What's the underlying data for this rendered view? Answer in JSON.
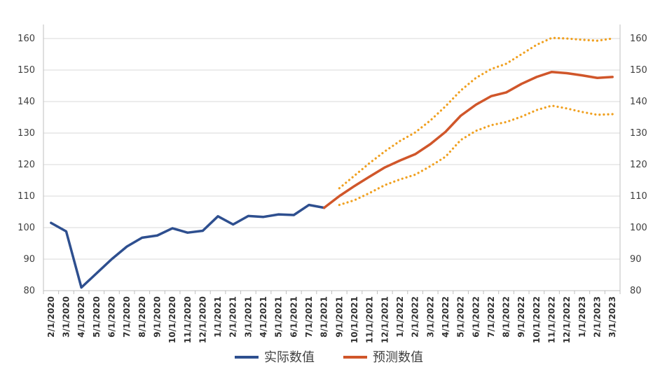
{
  "chart_data": {
    "type": "line",
    "x": [
      "2/1/2020",
      "3/1/2020",
      "4/1/2020",
      "5/1/2020",
      "6/1/2020",
      "7/1/2020",
      "8/1/2020",
      "9/1/2020",
      "10/1/2020",
      "11/1/2020",
      "12/1/2020",
      "1/1/2021",
      "2/1/2021",
      "3/1/2021",
      "4/1/2021",
      "5/1/2021",
      "6/1/2021",
      "7/1/2021",
      "8/1/2021",
      "9/1/2021",
      "10/1/2021",
      "11/1/2021",
      "12/1/2021",
      "1/1/2022",
      "2/1/2022",
      "3/1/2022",
      "4/1/2022",
      "5/1/2022",
      "6/1/2022",
      "7/1/2022",
      "8/1/2022",
      "9/1/2022",
      "10/1/2022",
      "11/1/2022",
      "12/1/2022",
      "1/1/2023",
      "2/1/2023",
      "3/1/2023"
    ],
    "ylim": [
      80,
      160
    ],
    "yticks": [
      80,
      90,
      100,
      110,
      120,
      130,
      140,
      150,
      160
    ],
    "grid": true,
    "legend_position": "bottom",
    "series": [
      {
        "name": "实际数值",
        "color": "#2e4f8f",
        "style": "solid",
        "values": [
          101.5,
          98.8,
          81,
          85.5,
          90,
          94,
          96.8,
          97.5,
          99.8,
          98.4,
          99,
          103.6,
          101,
          103.7,
          103.4,
          104.2,
          104,
          107.2,
          106.3,
          null,
          null,
          null,
          null,
          null,
          null,
          null,
          null,
          null,
          null,
          null,
          null,
          null,
          null,
          null,
          null,
          null,
          null,
          null
        ]
      },
      {
        "name": "预测数值",
        "color": "#d0562a",
        "style": "solid",
        "values": [
          null,
          null,
          null,
          null,
          null,
          null,
          null,
          null,
          null,
          null,
          null,
          null,
          null,
          null,
          null,
          null,
          null,
          null,
          106.3,
          110,
          113.2,
          116.2,
          119.1,
          121.3,
          123.3,
          126.5,
          130.4,
          135.5,
          139,
          141.7,
          142.9,
          145.6,
          147.8,
          149.4,
          149,
          148.3,
          147.5,
          147.8
        ]
      },
      {
        "color": "#f0a020",
        "style": "dotted",
        "values": [
          null,
          null,
          null,
          null,
          null,
          null,
          null,
          null,
          null,
          null,
          null,
          null,
          null,
          null,
          null,
          null,
          null,
          null,
          null,
          112.5,
          116.5,
          120.5,
          124.2,
          127.5,
          130.2,
          134,
          138.5,
          143.5,
          147.5,
          150.3,
          152,
          155,
          158,
          160.2,
          160,
          159.6,
          159.3,
          160
        ]
      },
      {
        "color": "#f0a020",
        "style": "dotted",
        "values": [
          null,
          null,
          null,
          null,
          null,
          null,
          null,
          null,
          null,
          null,
          null,
          null,
          null,
          null,
          null,
          null,
          null,
          null,
          null,
          107.2,
          108.7,
          111,
          113.5,
          115.3,
          116.8,
          119.5,
          122.5,
          127.8,
          130.7,
          132.5,
          133.5,
          135.2,
          137.3,
          138.7,
          137.8,
          136.7,
          135.8,
          136
        ]
      }
    ]
  }
}
